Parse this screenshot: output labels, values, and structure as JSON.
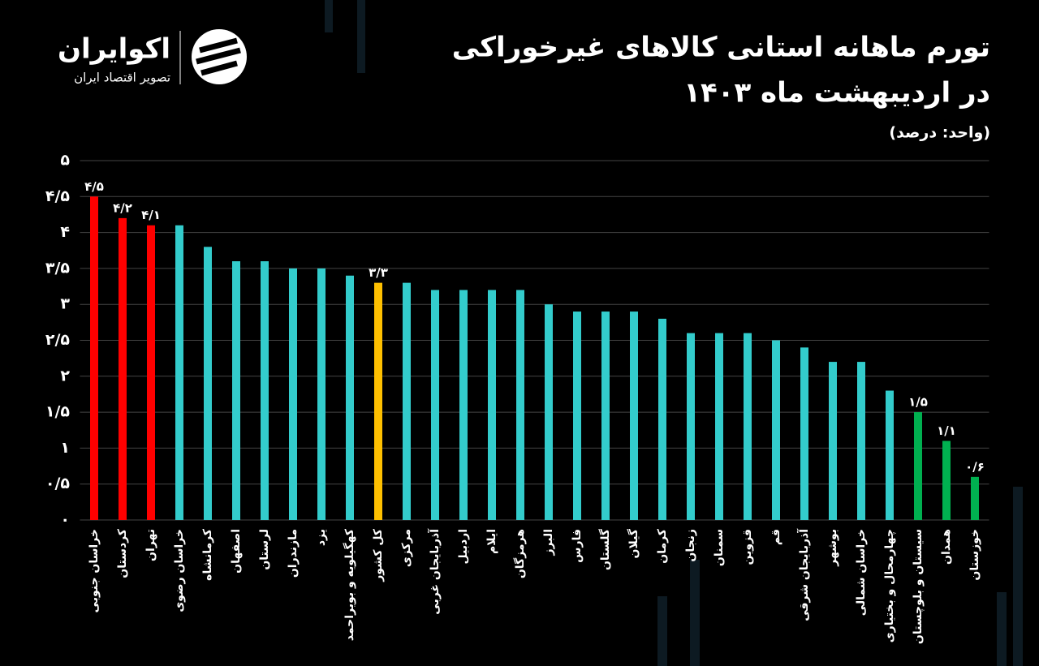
{
  "logo": {
    "name": "اکوایران",
    "tagline": "تصویر اقتصاد ایران"
  },
  "chart_data": {
    "type": "bar",
    "title": "تورم ماهانه استانی کالاهای غیرخوراکی",
    "subtitle": "در اردیبهشت ماه ۱۴۰۳",
    "unit_note": "(واحد: درصد)",
    "categories": [
      "خراسان جنوبی",
      "کردستان",
      "تهران",
      "خراسان رضوی",
      "کرمانشاه",
      "اصفهان",
      "لرستان",
      "مازندران",
      "یزد",
      "کهگیلویه و بویراحمد",
      "کل کشور",
      "مرکزی",
      "آذربایجان غربی",
      "اردبیل",
      "ایلام",
      "هرمزگان",
      "البرز",
      "فارس",
      "گلستان",
      "گیلان",
      "کرمان",
      "زنجان",
      "سمنان",
      "قزوین",
      "قم",
      "آذربایجان شرقی",
      "بوشهر",
      "خراسان شمالی",
      "چهارمحال و بختیاری",
      "سیستان و بلوچستان",
      "همدان",
      "خوزستان"
    ],
    "values": [
      4.5,
      4.2,
      4.1,
      4.1,
      3.8,
      3.6,
      3.6,
      3.5,
      3.5,
      3.4,
      3.3,
      3.3,
      3.2,
      3.2,
      3.2,
      3.2,
      3.0,
      2.9,
      2.9,
      2.9,
      2.8,
      2.6,
      2.6,
      2.6,
      2.5,
      2.4,
      2.2,
      2.2,
      1.8,
      1.5,
      1.1,
      0.6
    ],
    "value_labels": [
      "۴/۵",
      "۴/۲",
      "۴/۱",
      null,
      null,
      null,
      null,
      null,
      null,
      null,
      "۳/۳",
      null,
      null,
      null,
      null,
      null,
      null,
      null,
      null,
      null,
      null,
      null,
      null,
      null,
      null,
      null,
      null,
      null,
      null,
      "۱/۵",
      "۱/۱",
      "۰/۶"
    ],
    "colors": [
      "#ff0000",
      "#ff0000",
      "#ff0000",
      "#33cccc",
      "#33cccc",
      "#33cccc",
      "#33cccc",
      "#33cccc",
      "#33cccc",
      "#33cccc",
      "#ffc000",
      "#33cccc",
      "#33cccc",
      "#33cccc",
      "#33cccc",
      "#33cccc",
      "#33cccc",
      "#33cccc",
      "#33cccc",
      "#33cccc",
      "#33cccc",
      "#33cccc",
      "#33cccc",
      "#33cccc",
      "#33cccc",
      "#33cccc",
      "#33cccc",
      "#33cccc",
      "#33cccc",
      "#00b050",
      "#00b050",
      "#00b050"
    ],
    "ylim": [
      0,
      5
    ],
    "yticks": [
      {
        "value": 0,
        "label": "۰"
      },
      {
        "value": 0.5,
        "label": "۰/۵"
      },
      {
        "value": 1,
        "label": "۱"
      },
      {
        "value": 1.5,
        "label": "۱/۵"
      },
      {
        "value": 2,
        "label": "۲"
      },
      {
        "value": 2.5,
        "label": "۲/۵"
      },
      {
        "value": 3,
        "label": "۳"
      },
      {
        "value": 3.5,
        "label": "۳/۵"
      },
      {
        "value": 4,
        "label": "۴"
      },
      {
        "value": 4.5,
        "label": "۴/۵"
      },
      {
        "value": 5,
        "label": "۵"
      }
    ],
    "grid": true
  }
}
